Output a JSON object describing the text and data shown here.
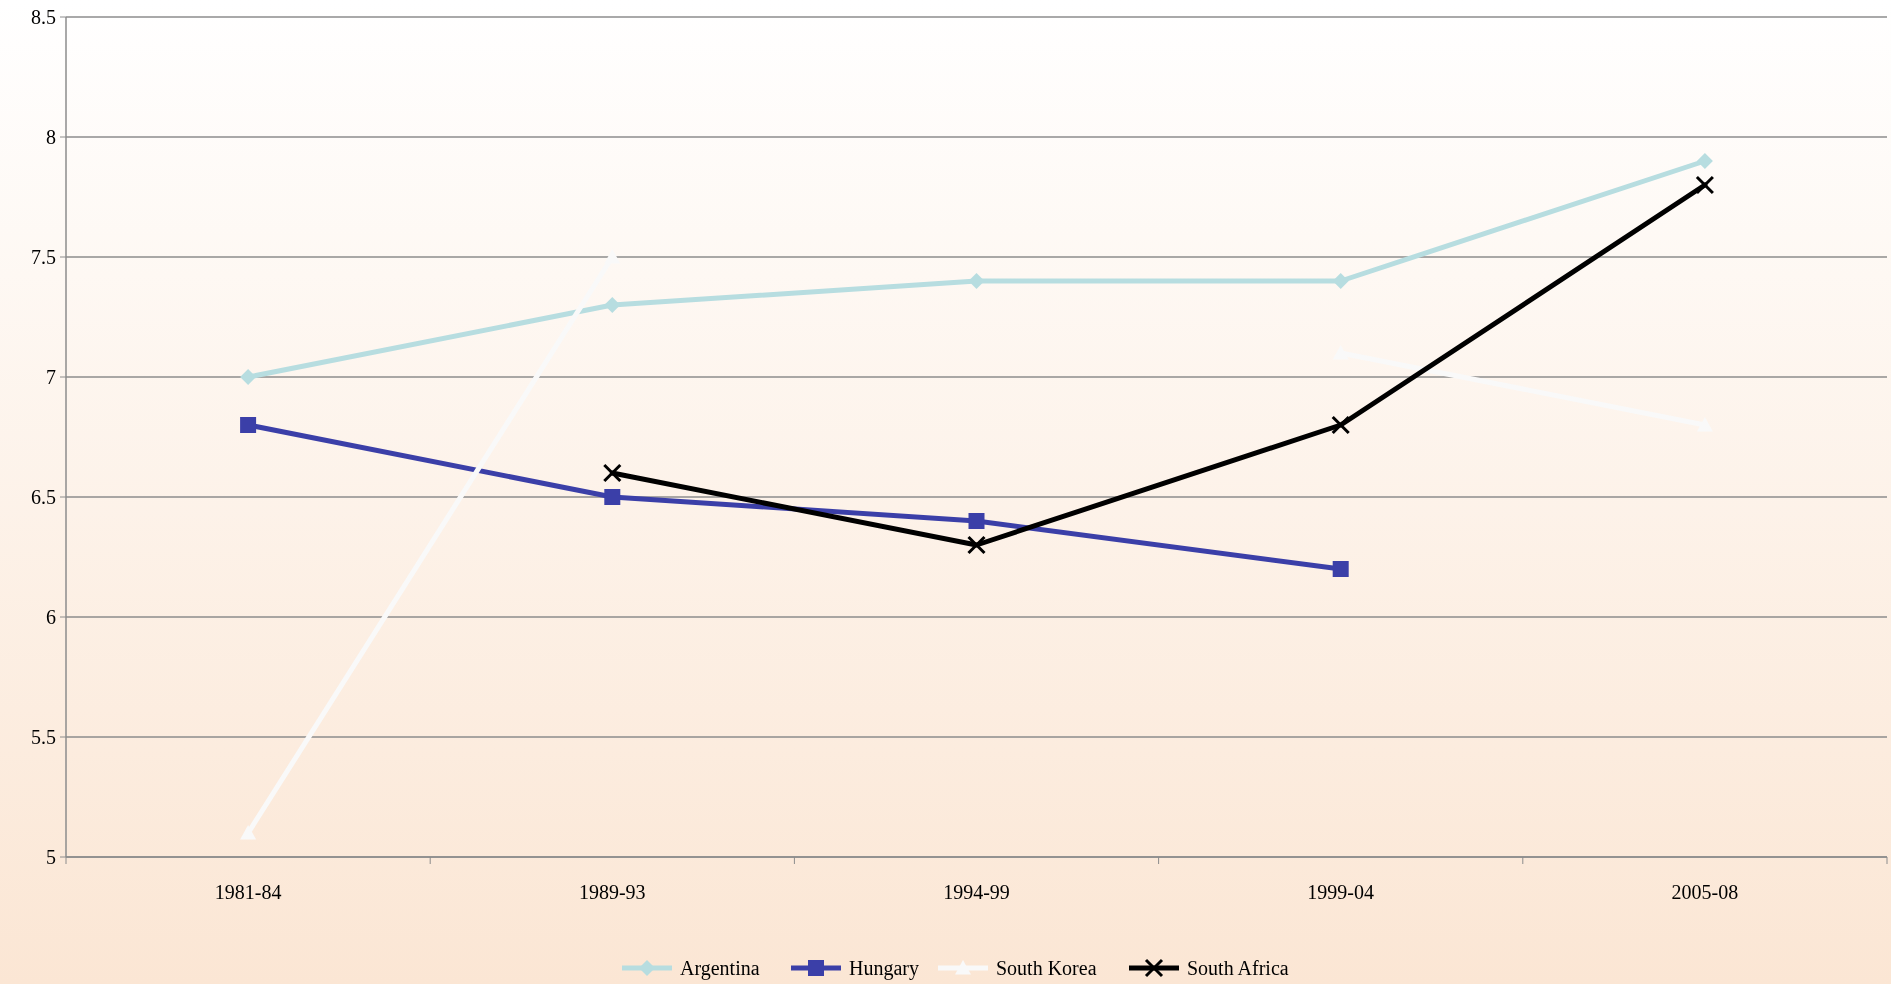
{
  "chart_data": {
    "type": "line",
    "categories": [
      "1981-84",
      "1989-93",
      "1994-99",
      "1999-04",
      "2005-08"
    ],
    "series": [
      {
        "name": "Argentina",
        "color": "#b7dde0",
        "marker": "diamond",
        "values": [
          7.0,
          7.3,
          7.4,
          7.4,
          7.9
        ]
      },
      {
        "name": "Hungary",
        "color": "#3b3fa8",
        "marker": "square",
        "values": [
          6.8,
          6.5,
          6.4,
          6.2,
          null
        ]
      },
      {
        "name": "South Korea",
        "color": "#f9f9f9",
        "marker": "triangle",
        "values": [
          5.1,
          7.5,
          null,
          7.1,
          6.8
        ]
      },
      {
        "name": "South Africa",
        "color": "#000000",
        "marker": "cross",
        "values": [
          null,
          6.6,
          6.3,
          6.8,
          7.8
        ]
      }
    ],
    "ylim": [
      5,
      8.5
    ],
    "yticks": [
      5,
      5.5,
      6,
      6.5,
      7,
      7.5,
      8,
      8.5
    ],
    "grid": "y",
    "legend": "bottom"
  }
}
